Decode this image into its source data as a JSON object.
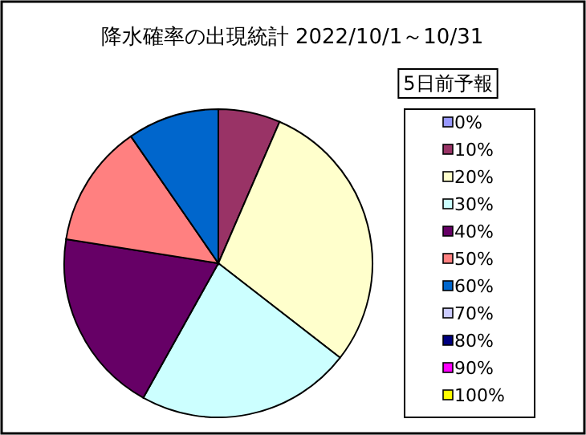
{
  "chart_data": {
    "type": "pie",
    "title": "降水確率の出現統計 2022/10/1～10/31",
    "legend_title": "5日前予報",
    "legend": "right",
    "categories": [
      "0%",
      "10%",
      "20%",
      "30%",
      "40%",
      "50%",
      "60%",
      "70%",
      "80%",
      "90%",
      "100%"
    ],
    "values": [
      0,
      6.5,
      29,
      22.6,
      19.4,
      12.9,
      9.6,
      0,
      0,
      0,
      0
    ],
    "colors": [
      "#9999ff",
      "#993366",
      "#ffffcc",
      "#ccffff",
      "#660066",
      "#ff8080",
      "#0066cc",
      "#ccccff",
      "#000080",
      "#ff00ff",
      "#ffff00"
    ]
  }
}
